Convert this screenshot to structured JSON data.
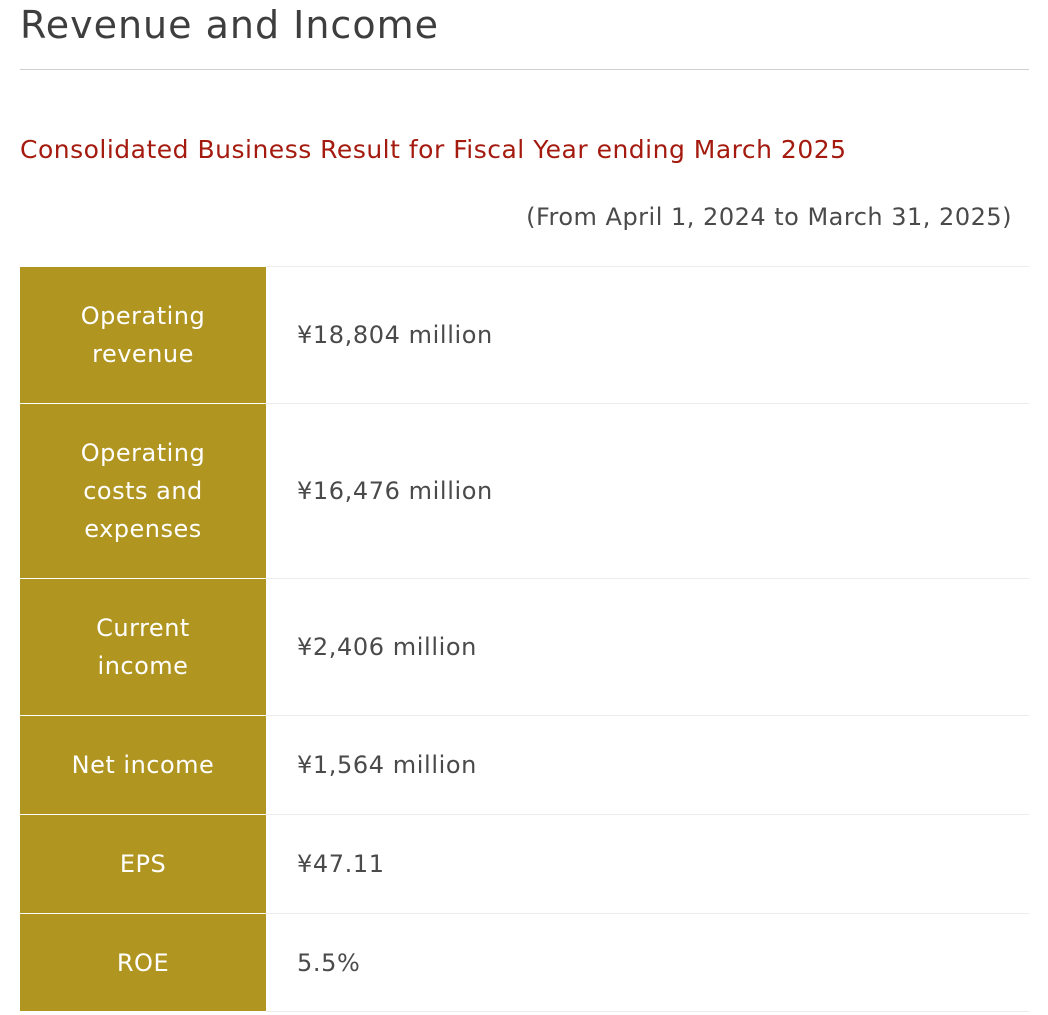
{
  "page": {
    "title": "Revenue and Income"
  },
  "section": {
    "heading": "Consolidated Business Result for Fiscal Year ending March 2025",
    "period": "(From April 1, 2024 to March 31, 2025)"
  },
  "colors": {
    "label_background": "#b09520",
    "heading_red": "#a41a0e",
    "text_gray": "#4a4a4a"
  },
  "results": [
    {
      "label": "Operating revenue",
      "value": "¥18,804 million"
    },
    {
      "label": "Operating costs and expenses",
      "value": "¥16,476 million"
    },
    {
      "label": "Current income",
      "value": "¥2,406 million"
    },
    {
      "label": "Net income",
      "value": "¥1,564 million"
    },
    {
      "label": "EPS",
      "value": "¥47.11"
    },
    {
      "label": "ROE",
      "value": "5.5%"
    }
  ]
}
